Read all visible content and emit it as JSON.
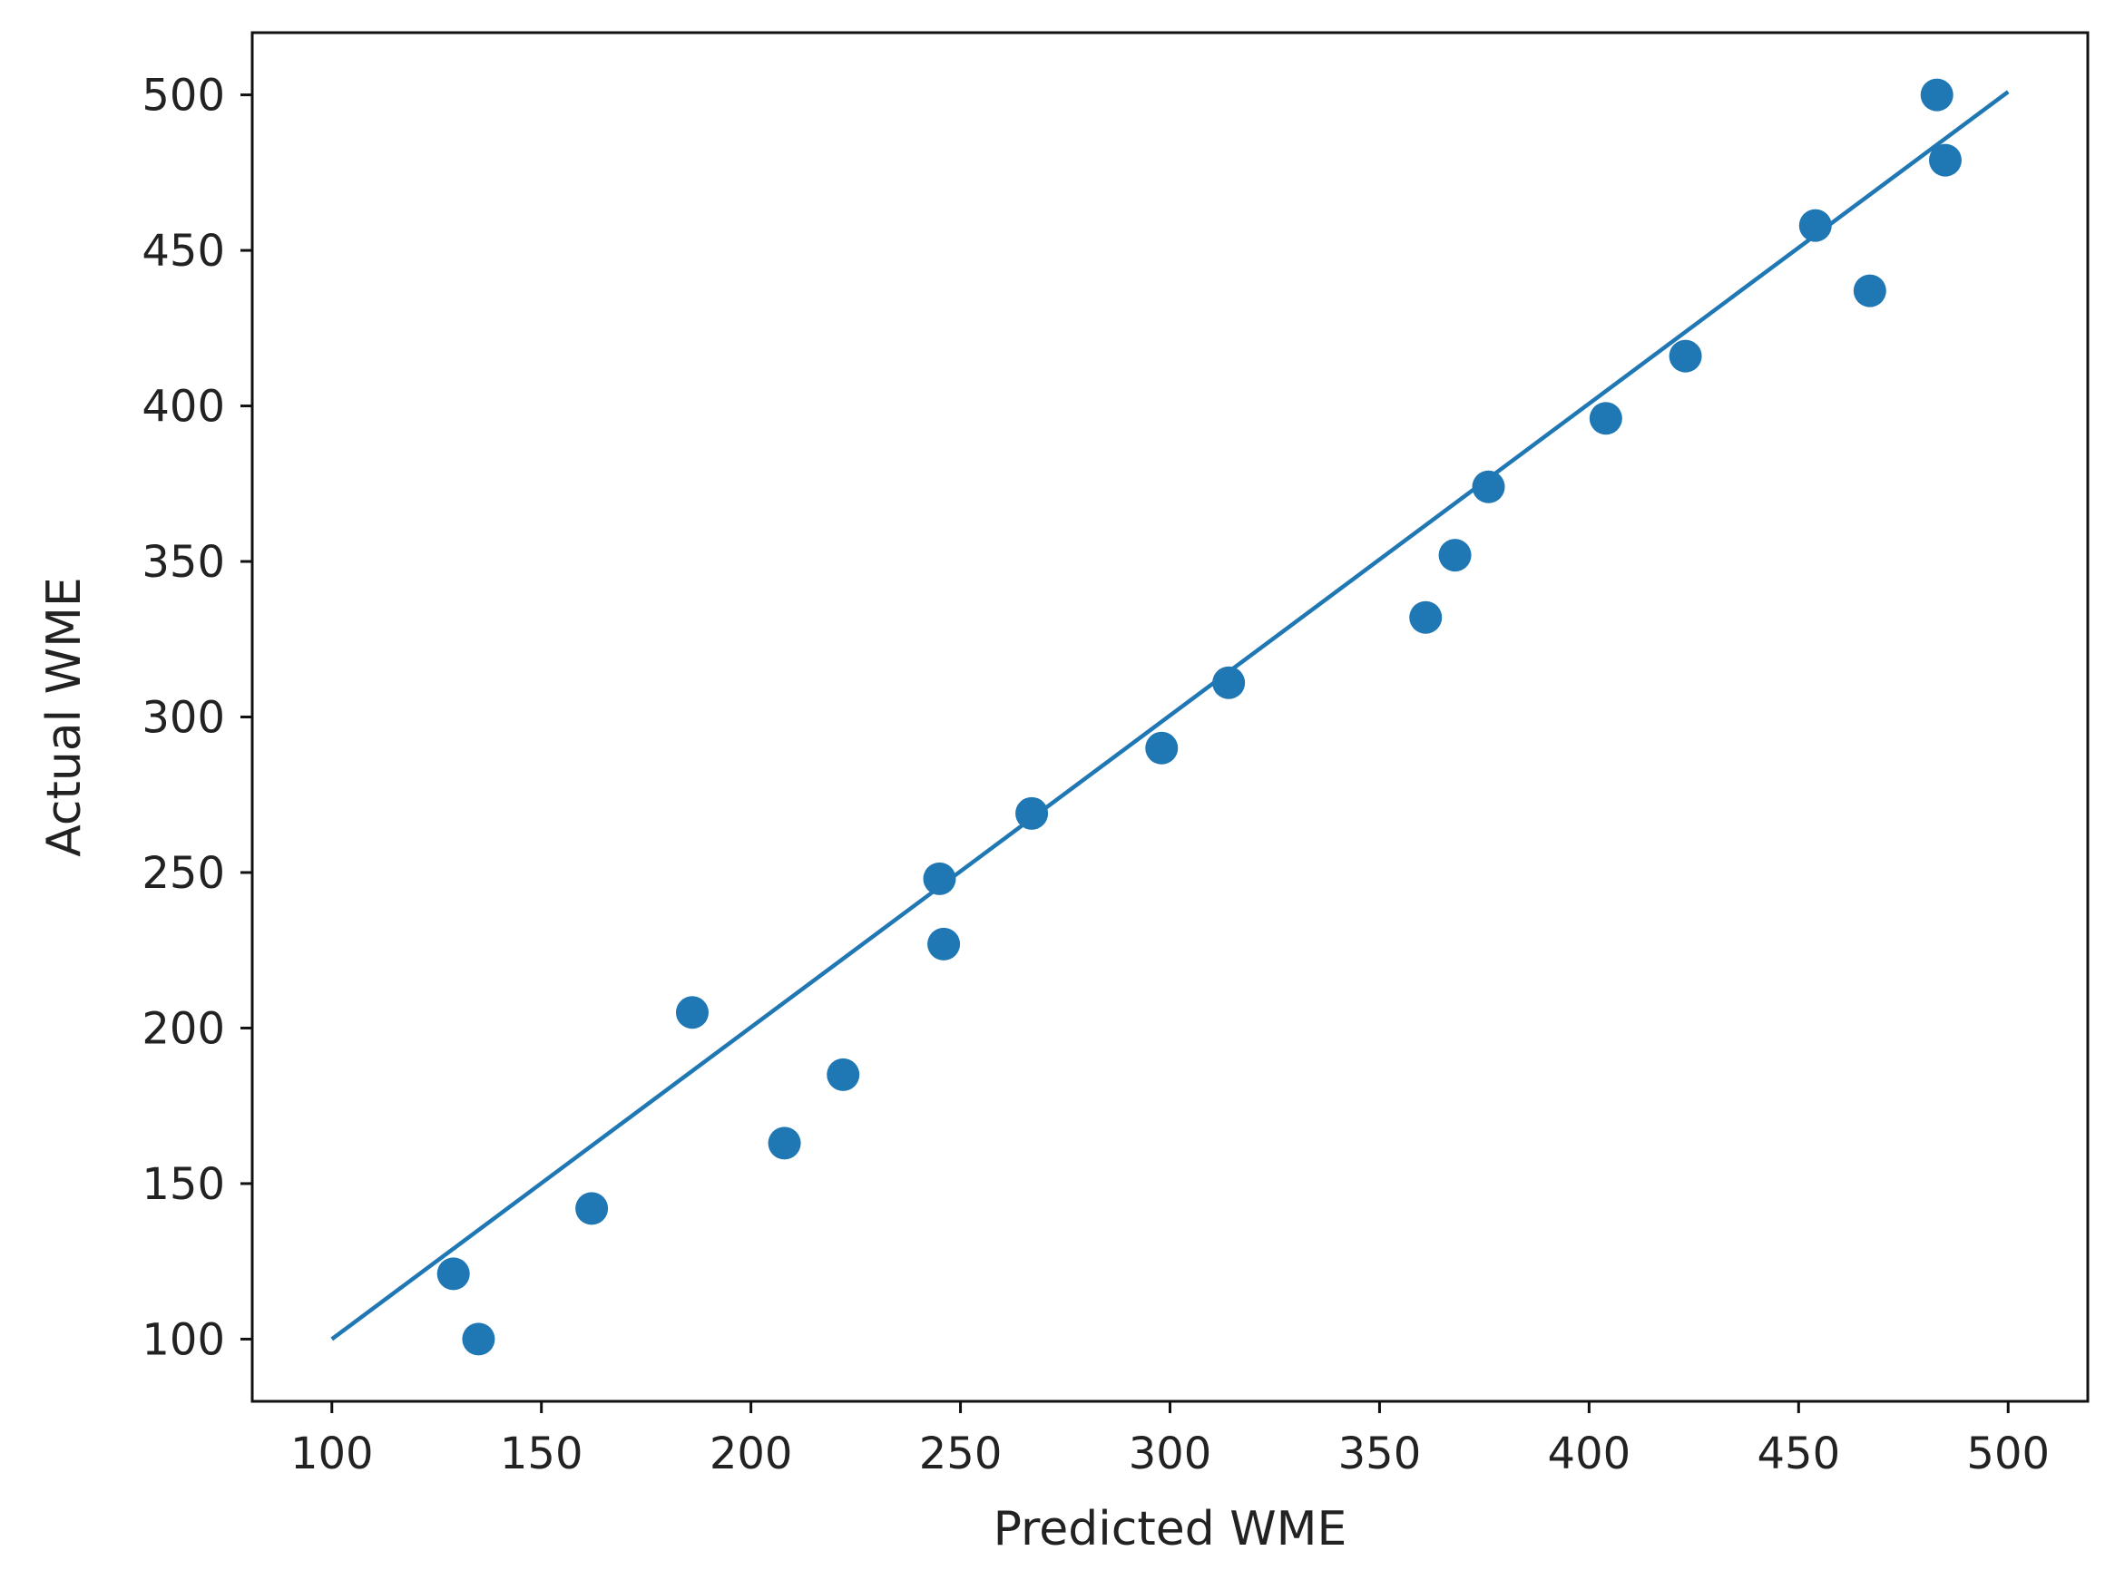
{
  "chart_data": {
    "type": "scatter",
    "title": "",
    "xlabel": "Predicted WME",
    "ylabel": "Actual WME",
    "xlim": [
      81,
      519
    ],
    "ylim": [
      80,
      520
    ],
    "xticks": [
      100,
      150,
      200,
      250,
      300,
      350,
      400,
      450,
      500
    ],
    "yticks": [
      100,
      150,
      200,
      250,
      300,
      350,
      400,
      450,
      500
    ],
    "grid": false,
    "color": "#1f77b4",
    "series": [
      {
        "type": "scatter",
        "points": [
          {
            "x": 129,
            "y": 121
          },
          {
            "x": 135,
            "y": 100
          },
          {
            "x": 162,
            "y": 142
          },
          {
            "x": 186,
            "y": 205
          },
          {
            "x": 208,
            "y": 163
          },
          {
            "x": 222,
            "y": 185
          },
          {
            "x": 245,
            "y": 248
          },
          {
            "x": 246,
            "y": 227
          },
          {
            "x": 267,
            "y": 269
          },
          {
            "x": 298,
            "y": 290
          },
          {
            "x": 314,
            "y": 311
          },
          {
            "x": 361,
            "y": 332
          },
          {
            "x": 368,
            "y": 352
          },
          {
            "x": 376,
            "y": 374
          },
          {
            "x": 404,
            "y": 396
          },
          {
            "x": 423,
            "y": 416
          },
          {
            "x": 454,
            "y": 458
          },
          {
            "x": 467,
            "y": 437
          },
          {
            "x": 483,
            "y": 500
          },
          {
            "x": 485,
            "y": 479
          }
        ]
      },
      {
        "type": "line",
        "points": [
          {
            "x": 100,
            "y": 100
          },
          {
            "x": 500,
            "y": 501
          }
        ]
      }
    ]
  }
}
